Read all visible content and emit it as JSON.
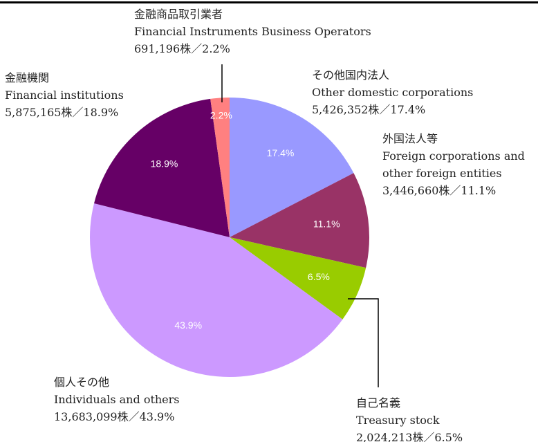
{
  "chart_data": {
    "type": "pie",
    "categories": [
      "その他国内法人",
      "外国法人等",
      "自己名義",
      "個人その他",
      "金融機関",
      "金融商品取引業者"
    ],
    "categories_en": [
      "Other domestic corporations",
      "Foreign corporations and other foreign entities",
      "Treasury stock",
      "Individuals and others",
      "Financial institutions",
      "Financial Instruments Business Operators"
    ],
    "values": [
      17.4,
      11.1,
      6.5,
      43.9,
      18.9,
      2.2
    ],
    "value_labels": [
      "17.4%",
      "11.1%",
      "6.5%",
      "43.9%",
      "18.9%",
      "2.2%"
    ],
    "detail_labels": [
      "5,426,352株／17.4%",
      "3,446,660株／11.1%",
      "2,024,213株／6.5%",
      "13,683,099株／43.9%",
      "5,875,165株／18.9%",
      "691,196株／2.2%"
    ],
    "colors": [
      "#9999ff",
      "#993366",
      "#99cc00",
      "#cc99ff",
      "#660066",
      "#ff8080"
    ]
  }
}
